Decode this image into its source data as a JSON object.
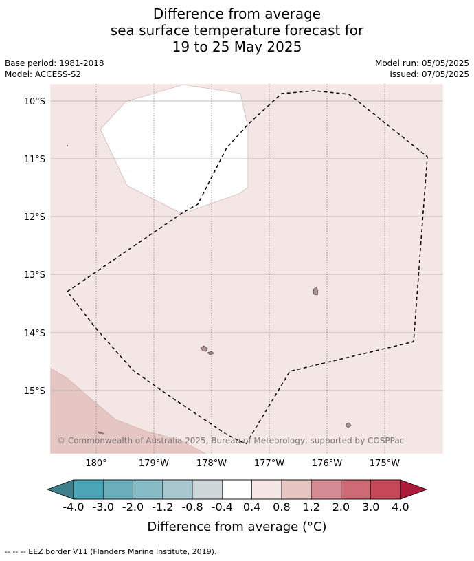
{
  "title": {
    "line1": "Difference from average",
    "line2": "sea surface temperature forecast for",
    "line3": "19 to 25 May 2025"
  },
  "meta": {
    "base_period": "Base period: 1981-2018",
    "model": "Model: ACCESS-S2",
    "model_run": "Model run: 05/05/2025",
    "issued": "Issued: 07/05/2025"
  },
  "map": {
    "lat_labels": [
      "10°S",
      "11°S",
      "12°S",
      "13°S",
      "14°S",
      "15°S"
    ],
    "lon_labels": [
      "180°",
      "179°W",
      "178°W",
      "177°W",
      "176°W",
      "175°W"
    ],
    "copyright": "© Commonwealth of Australia 2025, Bureau of Meteorology, supported by COSPPac",
    "background_color": "#f4e6e4",
    "warm_region_color": "#e6c6c2",
    "neutral_region_color": "#ffffff",
    "land_color": "#b09090"
  },
  "colorbar": {
    "title": "Difference from average (°C)",
    "ticks": [
      "-4.0",
      "-3.0",
      "-2.0",
      "-1.2",
      "-0.8",
      "-0.4",
      "0.4",
      "0.8",
      "1.2",
      "2.0",
      "3.0",
      "4.0"
    ],
    "colors": [
      "#4aa6b7",
      "#6aaebb",
      "#88bcc7",
      "#a8c8cf",
      "#cdd7da",
      "#ffffff",
      "#f4e6e4",
      "#e6c6c2",
      "#d68c94",
      "#cd6a76",
      "#c44858"
    ],
    "under_color": "#3d7f8d",
    "over_color": "#ad1b3a"
  },
  "footnote": "--  --  -- EEZ border V11 (Flanders Marine Institute, 2019)."
}
